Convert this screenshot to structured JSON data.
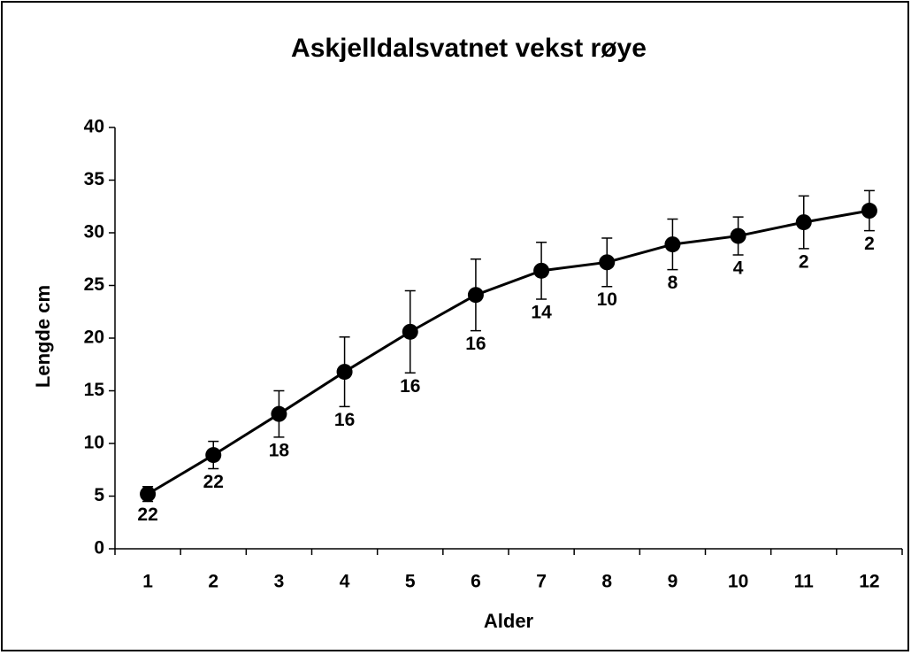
{
  "chart_data": {
    "type": "line",
    "title": "Askjelldalsvatnet vekst røye",
    "x_label": "Alder",
    "y_label": "Lengde cm",
    "categories": [
      "1",
      "2",
      "3",
      "4",
      "5",
      "6",
      "7",
      "8",
      "9",
      "10",
      "11",
      "12"
    ],
    "series": [
      {
        "color": "#000000",
        "values": [
          5.2,
          8.9,
          12.8,
          16.8,
          20.6,
          24.1,
          26.4,
          27.2,
          28.9,
          29.7,
          31.0,
          32.1
        ],
        "errors": [
          0.7,
          1.3,
          2.2,
          3.3,
          3.9,
          3.4,
          2.7,
          2.3,
          2.4,
          1.8,
          2.5,
          1.9
        ],
        "value_labels": [
          "22",
          "22",
          "18",
          "16",
          "16",
          "16",
          "14",
          "10",
          "8",
          "4",
          "2",
          "2"
        ]
      }
    ],
    "ylim": [
      0,
      40
    ],
    "yticks": [
      0,
      5,
      10,
      15,
      20,
      25,
      30,
      35,
      40
    ],
    "grid": false
  }
}
